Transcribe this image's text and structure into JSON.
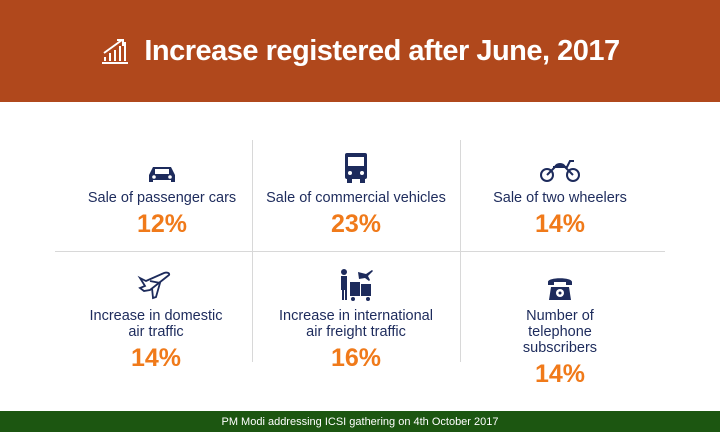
{
  "header": {
    "title": "Increase registered after June, 2017",
    "icon": "growth-chart-icon"
  },
  "colors": {
    "header": "#b0481c",
    "footer": "#1c5611",
    "value": "#f07a1a",
    "label": "#1d2b5c"
  },
  "stats": [
    {
      "label": "Sale of passenger cars",
      "value": "12%",
      "icon": "car-icon"
    },
    {
      "label": "Sale of commercial vehicles",
      "value": "23%",
      "icon": "truck-icon"
    },
    {
      "label": "Sale of two wheelers",
      "value": "14%",
      "icon": "motorcycle-icon"
    },
    {
      "label": "Increase in domestic air traffic",
      "value": "14%",
      "icon": "airplane-icon"
    },
    {
      "label": "Increase in international air freight traffic",
      "value": "16%",
      "icon": "air-freight-icon"
    },
    {
      "label": "Number of telephone subscribers",
      "value": "14%",
      "icon": "telephone-icon"
    }
  ],
  "footer": {
    "caption": "PM Modi addressing ICSI gathering on 4th October 2017"
  }
}
